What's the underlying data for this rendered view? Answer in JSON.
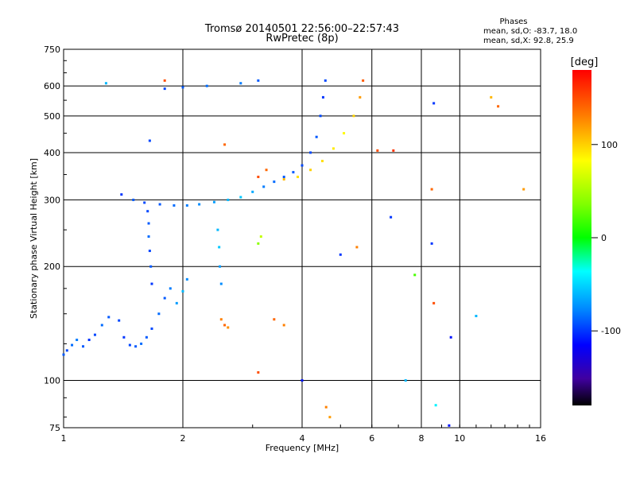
{
  "chart_data": {
    "type": "scatter",
    "title": "Tromsø 20140501 22:56:00–22:57:43",
    "subtitle": "RwPretec (8p)",
    "xlabel": "Frequency [MHz]",
    "ylabel": "Stationary phase Virtual Height [km]",
    "x_scale": "log2",
    "y_scale": "log",
    "xlim": [
      1,
      16
    ],
    "ylim": [
      75,
      750
    ],
    "x_ticks": [
      "1",
      "2",
      "4",
      "6",
      "8",
      "10",
      "16"
    ],
    "x_tick_values": [
      1,
      2,
      4,
      6,
      8,
      10,
      16
    ],
    "y_ticks": [
      "75",
      "100",
      "200",
      "300",
      "400",
      "500",
      "600",
      "750"
    ],
    "y_tick_values": [
      75,
      100,
      200,
      300,
      400,
      500,
      600,
      750
    ],
    "grid": true,
    "color_variable": "Phase [deg]",
    "colorbar": {
      "label": "[deg]",
      "range": [
        -180,
        180
      ],
      "tick_labels": [
        "100",
        "0",
        "-100"
      ],
      "tick_values": [
        100,
        0,
        -100
      ]
    },
    "stats": {
      "heading": "Phases",
      "line_o": "mean, sd,O: -83.7, 18.0",
      "line_x": "mean, sd,X:  92.8, 25.9"
    },
    "points": [
      {
        "x": 1.0,
        "y": 117,
        "phase": -90
      },
      {
        "x": 1.02,
        "y": 120,
        "phase": -95
      },
      {
        "x": 1.05,
        "y": 124,
        "phase": -85
      },
      {
        "x": 1.08,
        "y": 128,
        "phase": -80
      },
      {
        "x": 1.12,
        "y": 123,
        "phase": -90
      },
      {
        "x": 1.16,
        "y": 128,
        "phase": -100
      },
      {
        "x": 1.2,
        "y": 132,
        "phase": -95
      },
      {
        "x": 1.25,
        "y": 140,
        "phase": -85
      },
      {
        "x": 1.3,
        "y": 147,
        "phase": -90
      },
      {
        "x": 1.38,
        "y": 144,
        "phase": -95
      },
      {
        "x": 1.42,
        "y": 130,
        "phase": -100
      },
      {
        "x": 1.47,
        "y": 124,
        "phase": -95
      },
      {
        "x": 1.52,
        "y": 123,
        "phase": -90
      },
      {
        "x": 1.57,
        "y": 125,
        "phase": -85
      },
      {
        "x": 1.62,
        "y": 130,
        "phase": -90
      },
      {
        "x": 1.67,
        "y": 137,
        "phase": -95
      },
      {
        "x": 1.74,
        "y": 150,
        "phase": -85
      },
      {
        "x": 1.8,
        "y": 165,
        "phase": -90
      },
      {
        "x": 1.86,
        "y": 175,
        "phase": -80
      },
      {
        "x": 1.93,
        "y": 160,
        "phase": -70
      },
      {
        "x": 2.0,
        "y": 172,
        "phase": -60
      },
      {
        "x": 2.05,
        "y": 185,
        "phase": -75
      },
      {
        "x": 1.63,
        "y": 280,
        "phase": -95
      },
      {
        "x": 1.64,
        "y": 260,
        "phase": -90
      },
      {
        "x": 1.64,
        "y": 240,
        "phase": -85
      },
      {
        "x": 1.65,
        "y": 220,
        "phase": -95
      },
      {
        "x": 1.66,
        "y": 200,
        "phase": -90
      },
      {
        "x": 1.67,
        "y": 180,
        "phase": -100
      },
      {
        "x": 1.4,
        "y": 310,
        "phase": -100
      },
      {
        "x": 1.5,
        "y": 300,
        "phase": -90
      },
      {
        "x": 1.6,
        "y": 295,
        "phase": -95
      },
      {
        "x": 1.75,
        "y": 292,
        "phase": -90
      },
      {
        "x": 1.9,
        "y": 290,
        "phase": -85
      },
      {
        "x": 2.05,
        "y": 290,
        "phase": -80
      },
      {
        "x": 2.2,
        "y": 292,
        "phase": -75
      },
      {
        "x": 2.4,
        "y": 296,
        "phase": -70
      },
      {
        "x": 2.6,
        "y": 300,
        "phase": -60
      },
      {
        "x": 2.8,
        "y": 305,
        "phase": -55
      },
      {
        "x": 3.0,
        "y": 315,
        "phase": -65
      },
      {
        "x": 3.2,
        "y": 325,
        "phase": -80
      },
      {
        "x": 3.4,
        "y": 335,
        "phase": -85
      },
      {
        "x": 3.6,
        "y": 345,
        "phase": -90
      },
      {
        "x": 3.8,
        "y": 355,
        "phase": -90
      },
      {
        "x": 4.0,
        "y": 370,
        "phase": -95
      },
      {
        "x": 4.2,
        "y": 400,
        "phase": -95
      },
      {
        "x": 4.35,
        "y": 440,
        "phase": -90
      },
      {
        "x": 4.45,
        "y": 500,
        "phase": -95
      },
      {
        "x": 4.52,
        "y": 560,
        "phase": -100
      },
      {
        "x": 4.58,
        "y": 620,
        "phase": -95
      },
      {
        "x": 2.45,
        "y": 250,
        "phase": -60
      },
      {
        "x": 2.47,
        "y": 225,
        "phase": -55
      },
      {
        "x": 2.48,
        "y": 200,
        "phase": -70
      },
      {
        "x": 2.5,
        "y": 180,
        "phase": -75
      },
      {
        "x": 2.5,
        "y": 145,
        "phase": 130
      },
      {
        "x": 2.55,
        "y": 140,
        "phase": 140
      },
      {
        "x": 2.6,
        "y": 138,
        "phase": 125
      },
      {
        "x": 3.1,
        "y": 230,
        "phase": 40
      },
      {
        "x": 3.15,
        "y": 240,
        "phase": 60
      },
      {
        "x": 3.1,
        "y": 345,
        "phase": 150
      },
      {
        "x": 3.25,
        "y": 360,
        "phase": 140
      },
      {
        "x": 3.6,
        "y": 340,
        "phase": 110
      },
      {
        "x": 3.9,
        "y": 345,
        "phase": 95
      },
      {
        "x": 4.2,
        "y": 360,
        "phase": 100
      },
      {
        "x": 4.5,
        "y": 380,
        "phase": 95
      },
      {
        "x": 4.8,
        "y": 410,
        "phase": 90
      },
      {
        "x": 5.1,
        "y": 450,
        "phase": 85
      },
      {
        "x": 5.4,
        "y": 500,
        "phase": 100
      },
      {
        "x": 5.6,
        "y": 560,
        "phase": 120
      },
      {
        "x": 5.7,
        "y": 620,
        "phase": 145
      },
      {
        "x": 1.8,
        "y": 590,
        "phase": -95
      },
      {
        "x": 2.0,
        "y": 595,
        "phase": -90
      },
      {
        "x": 2.3,
        "y": 600,
        "phase": -85
      },
      {
        "x": 2.8,
        "y": 610,
        "phase": -80
      },
      {
        "x": 3.1,
        "y": 620,
        "phase": -90
      },
      {
        "x": 1.28,
        "y": 610,
        "phase": -60
      },
      {
        "x": 1.8,
        "y": 620,
        "phase": 150
      },
      {
        "x": 1.65,
        "y": 430,
        "phase": -95
      },
      {
        "x": 2.55,
        "y": 420,
        "phase": 140
      },
      {
        "x": 6.2,
        "y": 405,
        "phase": 150
      },
      {
        "x": 6.8,
        "y": 405,
        "phase": 160
      },
      {
        "x": 8.6,
        "y": 540,
        "phase": -100
      },
      {
        "x": 8.5,
        "y": 320,
        "phase": 140
      },
      {
        "x": 8.5,
        "y": 230,
        "phase": -100
      },
      {
        "x": 7.7,
        "y": 190,
        "phase": 20
      },
      {
        "x": 8.6,
        "y": 160,
        "phase": 150
      },
      {
        "x": 9.5,
        "y": 130,
        "phase": -110
      },
      {
        "x": 11.0,
        "y": 148,
        "phase": -60
      },
      {
        "x": 12.0,
        "y": 560,
        "phase": 110
      },
      {
        "x": 12.5,
        "y": 530,
        "phase": 140
      },
      {
        "x": 14.5,
        "y": 320,
        "phase": 120
      },
      {
        "x": 6.7,
        "y": 270,
        "phase": -100
      },
      {
        "x": 7.3,
        "y": 100,
        "phase": -60
      },
      {
        "x": 4.0,
        "y": 100,
        "phase": -110
      },
      {
        "x": 3.1,
        "y": 105,
        "phase": 150
      },
      {
        "x": 4.6,
        "y": 85,
        "phase": 130
      },
      {
        "x": 4.7,
        "y": 80,
        "phase": 120
      },
      {
        "x": 9.4,
        "y": 76,
        "phase": -110
      },
      {
        "x": 8.7,
        "y": 86,
        "phase": -40
      },
      {
        "x": 3.4,
        "y": 145,
        "phase": 140
      },
      {
        "x": 3.6,
        "y": 140,
        "phase": 130
      },
      {
        "x": 5.0,
        "y": 215,
        "phase": -100
      },
      {
        "x": 5.5,
        "y": 225,
        "phase": 130
      }
    ]
  }
}
